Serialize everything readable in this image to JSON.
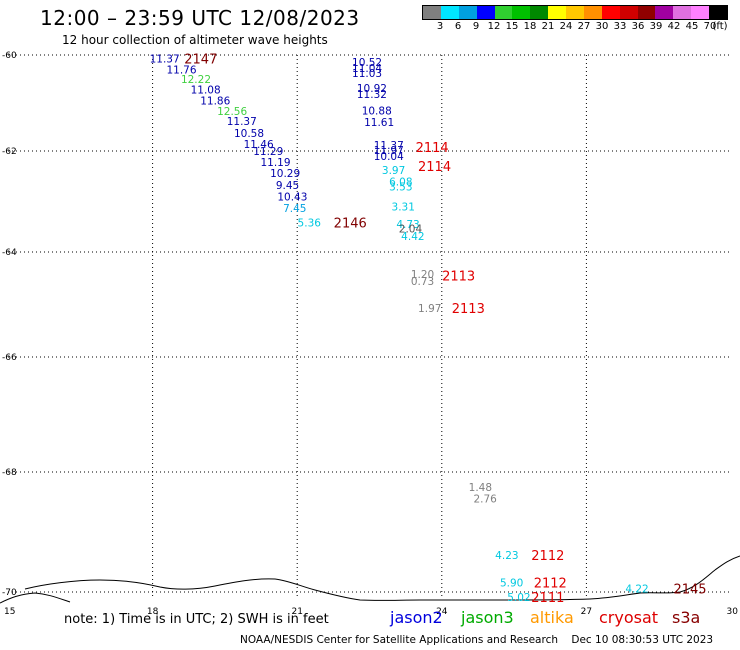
{
  "header": {
    "title": "12:00 – 23:59 UTC 12/08/2023",
    "subtitle": "12 hour collection of altimeter wave heights"
  },
  "colorbar": {
    "colors": [
      "#7f7f7f",
      "#00e5ff",
      "#00a0e0",
      "#0000ff",
      "#30d030",
      "#00c000",
      "#008800",
      "#ffff00",
      "#ffc800",
      "#ff9000",
      "#ff0000",
      "#d00000",
      "#900000",
      "#a000a0",
      "#e070e0",
      "#ff80ff",
      "#000000"
    ],
    "labels": [
      "3",
      "6",
      "9",
      "12",
      "15",
      "18",
      "21",
      "24",
      "27",
      "30",
      "33",
      "36",
      "39",
      "42",
      "45",
      "70",
      "(ft)"
    ]
  },
  "axes": {
    "x_ticks": [
      "15",
      "18",
      "21",
      "24",
      "27",
      "30"
    ],
    "y_ticks": [
      "-60",
      "-62",
      "-64",
      "-66",
      "-68",
      "-70"
    ]
  },
  "map_data": {
    "x_range": [
      15,
      30
    ],
    "y_range": [
      -60,
      -70.12
    ],
    "coastline_color": "#000000",
    "observations": [
      {
        "v": "11.37",
        "lon": 18.25,
        "lat": -60.07,
        "c": "#0000aa"
      },
      {
        "v": "11.76",
        "lon": 18.6,
        "lat": -60.3,
        "c": "#0000aa"
      },
      {
        "v": "12.22",
        "lon": 18.9,
        "lat": -60.5,
        "c": "#40d040"
      },
      {
        "v": "11.08",
        "lon": 19.1,
        "lat": -60.72,
        "c": "#0000aa"
      },
      {
        "v": "11.86",
        "lon": 19.3,
        "lat": -60.95,
        "c": "#0000aa"
      },
      {
        "v": "12.56",
        "lon": 19.65,
        "lat": -61.17,
        "c": "#40d040"
      },
      {
        "v": "11.37",
        "lon": 19.85,
        "lat": -61.38,
        "c": "#0000aa"
      },
      {
        "v": "10.58",
        "lon": 20.0,
        "lat": -61.62,
        "c": "#0000aa"
      },
      {
        "v": "11.46",
        "lon": 20.2,
        "lat": -61.85,
        "c": "#0000aa"
      },
      {
        "v": "11.29",
        "lon": 20.4,
        "lat": -62.0,
        "c": "#0000aa"
      },
      {
        "v": "11.19",
        "lon": 20.55,
        "lat": -62.22,
        "c": "#0000aa"
      },
      {
        "v": "10.29",
        "lon": 20.75,
        "lat": -62.44,
        "c": "#0000aa"
      },
      {
        "v": "9.45",
        "lon": 20.8,
        "lat": -62.67,
        "c": "#0000aa"
      },
      {
        "v": "10.43",
        "lon": 20.9,
        "lat": -62.9,
        "c": "#0000aa"
      },
      {
        "v": "7.45",
        "lon": 20.95,
        "lat": -63.13,
        "c": "#00a0e0"
      },
      {
        "v": "5.36",
        "lon": 21.25,
        "lat": -63.42,
        "c": "#00c8e0"
      },
      {
        "v": "10.52",
        "lon": 22.45,
        "lat": -60.15,
        "c": "#0000aa"
      },
      {
        "v": "11.04",
        "lon": 22.45,
        "lat": -60.27,
        "c": "#0000aa"
      },
      {
        "v": "11.03",
        "lon": 22.45,
        "lat": -60.38,
        "c": "#0000aa"
      },
      {
        "v": "10.92",
        "lon": 22.55,
        "lat": -60.69,
        "c": "#0000aa"
      },
      {
        "v": "11.32",
        "lon": 22.55,
        "lat": -60.81,
        "c": "#0000aa"
      },
      {
        "v": "10.88",
        "lon": 22.65,
        "lat": -61.16,
        "c": "#0000aa"
      },
      {
        "v": "11.61",
        "lon": 22.7,
        "lat": -61.4,
        "c": "#0000aa"
      },
      {
        "v": "11.37",
        "lon": 22.9,
        "lat": -61.88,
        "c": "#0000aa"
      },
      {
        "v": "11.97",
        "lon": 22.9,
        "lat": -61.98,
        "c": "#0000aa"
      },
      {
        "v": "10.04",
        "lon": 22.9,
        "lat": -62.1,
        "c": "#0000aa"
      },
      {
        "v": "3.97",
        "lon": 23.0,
        "lat": -62.38,
        "c": "#00c8e0"
      },
      {
        "v": "6.08",
        "lon": 23.15,
        "lat": -62.6,
        "c": "#00c8e0"
      },
      {
        "v": "3.53",
        "lon": 23.15,
        "lat": -62.7,
        "c": "#00c8e0"
      },
      {
        "v": "3.31",
        "lon": 23.2,
        "lat": -63.1,
        "c": "#00c8e0"
      },
      {
        "v": "4.73",
        "lon": 23.3,
        "lat": -63.45,
        "c": "#00c8e0"
      },
      {
        "v": "2.04",
        "lon": 23.35,
        "lat": -63.53,
        "c": "#555555"
      },
      {
        "v": "4.42",
        "lon": 23.4,
        "lat": -63.68,
        "c": "#00c8e0"
      },
      {
        "v": "1.20",
        "lon": 23.6,
        "lat": -64.42,
        "c": "#808080"
      },
      {
        "v": "0.73",
        "lon": 23.6,
        "lat": -64.55,
        "c": "#808080"
      },
      {
        "v": "1.97",
        "lon": 23.75,
        "lat": -65.07,
        "c": "#808080"
      },
      {
        "v": "1.48",
        "lon": 24.8,
        "lat": -68.25,
        "c": "#808080"
      },
      {
        "v": "2.76",
        "lon": 24.9,
        "lat": -68.44,
        "c": "#808080"
      },
      {
        "v": "4.23",
        "lon": 25.35,
        "lat": -69.38,
        "c": "#00c8e0"
      },
      {
        "v": "5.90",
        "lon": 25.45,
        "lat": -69.84,
        "c": "#00c8e0"
      },
      {
        "v": "5.02",
        "lon": 25.6,
        "lat": -70.08,
        "c": "#00c8e0"
      },
      {
        "v": "4.22",
        "lon": 28.05,
        "lat": -69.94,
        "c": "#00c8e0"
      }
    ],
    "pass_labels": [
      {
        "t": "2147",
        "lon": 19.0,
        "lat": -60.07,
        "c": "#800000"
      },
      {
        "t": "2146",
        "lon": 22.1,
        "lat": -63.42,
        "c": "#800000"
      },
      {
        "t": "2114",
        "lon": 23.8,
        "lat": -61.92,
        "c": "#e00000"
      },
      {
        "t": "2114",
        "lon": 23.85,
        "lat": -62.3,
        "c": "#e00000"
      },
      {
        "t": "2113",
        "lon": 24.35,
        "lat": -64.45,
        "c": "#e00000"
      },
      {
        "t": "2113",
        "lon": 24.55,
        "lat": -65.07,
        "c": "#e00000"
      },
      {
        "t": "2112",
        "lon": 26.2,
        "lat": -69.38,
        "c": "#e00000"
      },
      {
        "t": "2112",
        "lon": 26.25,
        "lat": -69.84,
        "c": "#e00000"
      },
      {
        "t": "2111",
        "lon": 26.2,
        "lat": -70.08,
        "c": "#e00000"
      },
      {
        "t": "2145",
        "lon": 29.15,
        "lat": -69.94,
        "c": "#800000"
      }
    ]
  },
  "legend": {
    "note": "note:  1) Time is in UTC;  2) SWH is in feet",
    "satellites": [
      {
        "name": "jason2",
        "color": "#0000dd"
      },
      {
        "name": "jason3",
        "color": "#00aa00"
      },
      {
        "name": "altika",
        "color": "#ff9900"
      },
      {
        "name": "cryosat",
        "color": "#dd0000"
      },
      {
        "name": "s3a",
        "color": "#880000"
      }
    ]
  },
  "footer": {
    "credit": "NOAA/NESDIS Center for Satellite Applications and Research",
    "timestamp": "Dec 10 08:30:53 UTC 2023"
  }
}
